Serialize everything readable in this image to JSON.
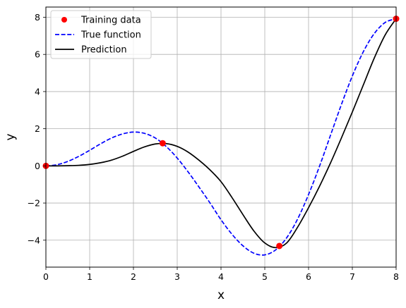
{
  "chart_data": {
    "type": "line",
    "title": "",
    "xlabel": "x",
    "ylabel": "y",
    "xlim": [
      0,
      8
    ],
    "ylim": [
      -5.45,
      8.55
    ],
    "xticks": [
      0,
      1,
      2,
      3,
      4,
      5,
      6,
      7,
      8
    ],
    "yticks": [
      -4,
      -2,
      0,
      2,
      4,
      6,
      8
    ],
    "xtick_labels": [
      "0",
      "1",
      "2",
      "3",
      "4",
      "5",
      "6",
      "7",
      "8"
    ],
    "ytick_labels": [
      "−4",
      "−2",
      "0",
      "2",
      "4",
      "6",
      "8"
    ],
    "grid": true,
    "legend_position": "top-left",
    "series": [
      {
        "name": "Training data",
        "style": "markers",
        "color": "#ff0000",
        "x": [
          0,
          2.667,
          5.333,
          8.0
        ],
        "y": [
          0,
          1.22,
          -4.31,
          7.92
        ]
      },
      {
        "name": "True function",
        "style": "dashed",
        "color": "#0000ff",
        "x": [
          0,
          0.25,
          0.5,
          0.75,
          1.0,
          1.25,
          1.5,
          1.75,
          2.0,
          2.25,
          2.5,
          2.75,
          3.0,
          3.25,
          3.5,
          3.75,
          4.0,
          4.25,
          4.5,
          4.75,
          5.0,
          5.25,
          5.5,
          5.75,
          6.0,
          6.25,
          6.5,
          6.75,
          7.0,
          7.25,
          7.5,
          7.75,
          8.0
        ],
        "y": [
          0,
          0.06,
          0.24,
          0.51,
          0.84,
          1.19,
          1.5,
          1.72,
          1.82,
          1.75,
          1.5,
          1.04,
          0.42,
          -0.33,
          -1.15,
          -2.0,
          -2.9,
          -3.68,
          -4.3,
          -4.7,
          -4.79,
          -4.52,
          -3.87,
          -2.86,
          -1.54,
          -0.02,
          1.64,
          3.3,
          4.84,
          6.14,
          7.12,
          7.72,
          7.92
        ]
      },
      {
        "name": "Prediction",
        "style": "solid",
        "color": "#000000",
        "x": [
          0,
          0.25,
          0.5,
          0.75,
          1.0,
          1.25,
          1.5,
          1.75,
          2.0,
          2.25,
          2.5,
          2.75,
          3.0,
          3.25,
          3.5,
          3.75,
          4.0,
          4.25,
          4.5,
          4.75,
          5.0,
          5.25,
          5.5,
          5.75,
          6.0,
          6.25,
          6.5,
          6.75,
          7.0,
          7.25,
          7.5,
          7.75,
          8.0
        ],
        "y": [
          0,
          0.0,
          0.01,
          0.03,
          0.08,
          0.17,
          0.31,
          0.52,
          0.78,
          1.02,
          1.18,
          1.2,
          1.05,
          0.74,
          0.3,
          -0.22,
          -0.85,
          -1.7,
          -2.62,
          -3.5,
          -4.15,
          -4.4,
          -4.15,
          -3.3,
          -2.25,
          -1.1,
          0.15,
          1.5,
          2.9,
          4.35,
          5.8,
          7.05,
          7.92
        ]
      }
    ]
  }
}
